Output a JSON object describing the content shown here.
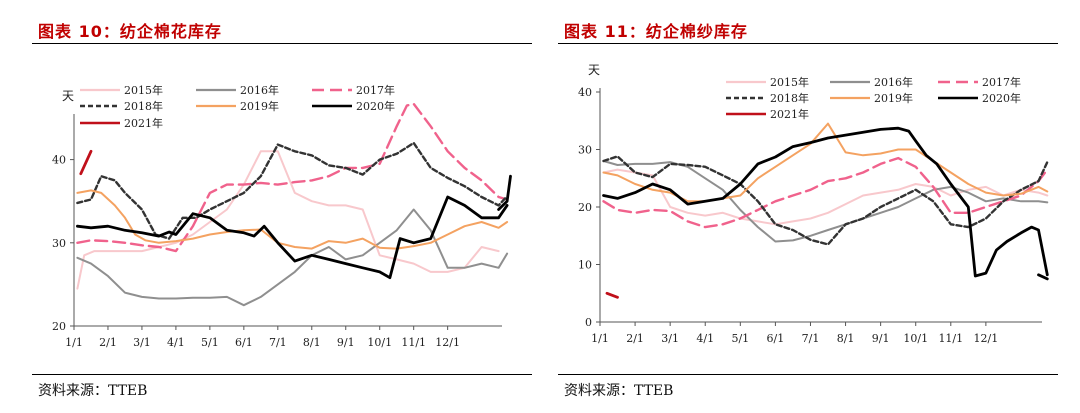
{
  "panels": [
    {
      "title": "图表 10：纺企棉花库存",
      "source": "资料来源：TTEB",
      "chart_data": {
        "type": "line",
        "ylabel": "天",
        "ylim": [
          20,
          45
        ],
        "xlim": [
          0,
          12.6
        ],
        "yticks": [
          20,
          30,
          40
        ],
        "xticks": [
          "1/1",
          "2/1",
          "3/1",
          "4/1",
          "5/1",
          "6/1",
          "7/1",
          "8/1",
          "9/1",
          "10/1",
          "11/1",
          "12/1"
        ],
        "legend_placement": "top-left",
        "series": [
          {
            "name": "2015年",
            "color": "#f8c8cc",
            "dash": "solid",
            "width": 2,
            "x": [
              0.1,
              0.3,
              0.6,
              1,
              1.5,
              2,
              2.5,
              3,
              3.5,
              4,
              4.5,
              5,
              5.5,
              6,
              6.5,
              7,
              7.5,
              8,
              8.5,
              9,
              9.5,
              10,
              10.5,
              11,
              11.5,
              12,
              12.5
            ],
            "y": [
              24.5,
              28.5,
              29,
              29,
              29,
              29,
              29.5,
              30,
              31,
              32.5,
              34,
              37,
              41,
              41,
              36,
              35,
              34.5,
              34.5,
              34,
              28.5,
              28,
              27.5,
              26.5,
              26.5,
              27,
              29.5,
              29
            ]
          },
          {
            "name": "2016年",
            "color": "#8f8f8f",
            "dash": "solid",
            "width": 2,
            "x": [
              0.1,
              0.5,
              1,
              1.5,
              2,
              2.5,
              3,
              3.5,
              4,
              4.5,
              5,
              5.5,
              6,
              6.5,
              7,
              7.5,
              8,
              8.5,
              9,
              9.5,
              10,
              10.5,
              11,
              11.5,
              12,
              12.5,
              12.75
            ],
            "y": [
              28.2,
              27.5,
              26,
              24,
              23.5,
              23.3,
              23.3,
              23.4,
              23.4,
              23.5,
              22.5,
              23.5,
              25,
              26.5,
              28.5,
              29.5,
              28,
              28.5,
              30,
              31.5,
              34,
              31.5,
              27,
              27,
              27.5,
              27,
              28.7
            ]
          },
          {
            "name": "2017年",
            "color": "#f0628c",
            "dash": "dashed",
            "width": 2.4,
            "x": [
              0.1,
              0.5,
              1,
              1.5,
              2,
              2.5,
              3,
              3.5,
              4,
              4.5,
              5,
              5.5,
              6,
              6.5,
              7,
              7.5,
              8,
              8.5,
              9,
              9.5,
              9.8,
              10,
              10.5,
              11,
              11.5,
              12,
              12.5,
              12.75
            ],
            "y": [
              30,
              30.3,
              30.2,
              30,
              29.7,
              29.5,
              29,
              32,
              36,
              37,
              37,
              37.2,
              37,
              37.3,
              37.5,
              38,
              39,
              39,
              39.5,
              44,
              46.5,
              46.7,
              44,
              41,
              39,
              37.5,
              35.5,
              35.2
            ]
          },
          {
            "name": "2018年",
            "color": "#333333",
            "dash": "dotted",
            "width": 2.4,
            "x": [
              0.1,
              0.5,
              0.8,
              1.2,
              1.5,
              2,
              2.4,
              2.8,
              3.2,
              3.6,
              4,
              4.5,
              5,
              5.5,
              6,
              6.5,
              7,
              7.5,
              8,
              8.5,
              9,
              9.5,
              10,
              10.5,
              11,
              11.5,
              12,
              12.5,
              12.75
            ],
            "y": [
              34.8,
              35.2,
              38,
              37.5,
              36,
              34,
              31,
              30.5,
              33,
              33,
              34,
              35,
              36,
              38,
              41.8,
              41,
              40.5,
              39.3,
              39,
              38.2,
              40,
              40.7,
              42,
              39,
              37.8,
              36.8,
              35.5,
              34.5,
              35.6
            ]
          },
          {
            "name": "2019年",
            "color": "#f4a261",
            "dash": "solid",
            "width": 2,
            "x": [
              0.1,
              0.5,
              0.8,
              1.2,
              1.5,
              1.8,
              2.1,
              2.5,
              3,
              3.5,
              4,
              4.5,
              5,
              5.5,
              6,
              6.5,
              7,
              7.5,
              8,
              8.5,
              9,
              9.5,
              10,
              10.5,
              11,
              11.5,
              12,
              12.5,
              12.75
            ],
            "y": [
              36,
              36.3,
              36,
              34.5,
              33,
              31,
              30.3,
              30,
              30.2,
              30.5,
              31,
              31.3,
              31.5,
              31.6,
              30,
              29.5,
              29.3,
              30.2,
              30,
              30.5,
              29.4,
              29.3,
              29.6,
              30,
              31,
              32,
              32.5,
              31.8,
              32.5
            ]
          },
          {
            "name": "2020年",
            "color": "#000000",
            "dash": "solid",
            "width": 2.8,
            "x": [
              0.1,
              0.5,
              1,
              1.5,
              2,
              2.5,
              2.8,
              3,
              3.5,
              4,
              4.5,
              5,
              5.3,
              5.6,
              6,
              6.5,
              7,
              7.5,
              8,
              8.5,
              9,
              9.3,
              9.6,
              10,
              10.5,
              11,
              11.5,
              12,
              12.5,
              12.75
            ],
            "y": [
              32,
              31.8,
              32,
              31.5,
              31.2,
              30.8,
              31.3,
              31,
              33.5,
              33,
              31.5,
              31.2,
              30.8,
              32,
              30,
              27.8,
              28.5,
              28,
              27.5,
              27,
              26.5,
              25.8,
              30.5,
              30,
              30.5,
              35.5,
              34.5,
              33,
              33,
              34.5
            ]
          },
          {
            "name": "2020年_tail",
            "color": "#000000",
            "dash": "solid",
            "width": 2.8,
            "x": [
              12.5,
              12.75,
              12.85
            ],
            "y": [
              34,
              35,
              38
            ]
          },
          {
            "name": "2021年",
            "color": "#c0101a",
            "dash": "solid",
            "width": 2.8,
            "x": [
              0.2,
              0.5
            ],
            "y": [
              38.3,
              41
            ]
          }
        ]
      },
      "legend": [
        {
          "label": "2015年",
          "color": "#f8c8cc",
          "dash": "solid"
        },
        {
          "label": "2016年",
          "color": "#8f8f8f",
          "dash": "solid"
        },
        {
          "label": "2017年",
          "color": "#f0628c",
          "dash": "dashed"
        },
        {
          "label": "2018年",
          "color": "#333333",
          "dash": "dotted"
        },
        {
          "label": "2019年",
          "color": "#f4a261",
          "dash": "solid"
        },
        {
          "label": "2020年",
          "color": "#000000",
          "dash": "solid"
        },
        {
          "label": "2021年",
          "color": "#c0101a",
          "dash": "solid"
        }
      ]
    },
    {
      "title": "图表 11：纺企棉纱库存",
      "source": "资料来源：TTEB",
      "chart_data": {
        "type": "line",
        "ylabel": "天",
        "ylim": [
          0,
          40
        ],
        "xlim": [
          0,
          12.6
        ],
        "yticks": [
          0,
          10,
          20,
          30,
          40
        ],
        "xticks": [
          "1/1",
          "2/1",
          "3/1",
          "4/1",
          "5/1",
          "6/1",
          "7/1",
          "8/1",
          "9/1",
          "10/1",
          "11/1",
          "12/1"
        ],
        "legend_placement": "top-right",
        "series": [
          {
            "name": "2015年",
            "color": "#f8c8cc",
            "dash": "solid",
            "width": 2,
            "x": [
              0.1,
              0.5,
              1,
              1.5,
              2,
              2.5,
              3,
              3.5,
              4,
              4.5,
              5,
              5.5,
              6,
              6.5,
              7,
              7.5,
              8,
              8.5,
              9,
              9.5,
              10,
              10.5,
              11,
              11.5,
              12,
              12.5,
              12.75
            ],
            "y": [
              26,
              26.5,
              26,
              25.5,
              20,
              19,
              18.5,
              19,
              18,
              17.5,
              17,
              17.5,
              18,
              19,
              20.5,
              22,
              22.5,
              23,
              24,
              23.5,
              22,
              23,
              23.5,
              22,
              23,
              22.5,
              22
            ]
          },
          {
            "name": "2016年",
            "color": "#8f8f8f",
            "dash": "solid",
            "width": 2,
            "x": [
              0.1,
              0.5,
              1,
              1.5,
              2,
              2.5,
              3,
              3.5,
              4,
              4.5,
              5,
              5.5,
              6,
              6.5,
              7,
              7.5,
              8,
              8.5,
              9,
              9.5,
              10,
              10.5,
              11,
              11.5,
              12,
              12.5,
              12.75
            ],
            "y": [
              28,
              27.3,
              27.5,
              27.5,
              27.8,
              27,
              25,
              23,
              19.5,
              16.5,
              14,
              14.2,
              15,
              16,
              17,
              18,
              19,
              20,
              21.5,
              23,
              23.5,
              22.5,
              21,
              21.5,
              21,
              21,
              20.8
            ]
          },
          {
            "name": "2017年",
            "color": "#f0628c",
            "dash": "dashed",
            "width": 2.4,
            "x": [
              0.1,
              0.5,
              1,
              1.5,
              2,
              2.5,
              3,
              3.5,
              4,
              4.5,
              5,
              5.5,
              6,
              6.5,
              7,
              7.5,
              8,
              8.5,
              9,
              9.5,
              10,
              10.5,
              11,
              11.5,
              12,
              12.5,
              12.75
            ],
            "y": [
              21,
              19.5,
              19,
              19.5,
              19.3,
              17.5,
              16.5,
              17,
              18,
              19.5,
              21,
              22,
              23,
              24.5,
              25,
              26,
              27.5,
              28.5,
              27,
              23.5,
              19,
              19,
              20,
              21,
              22,
              24.5,
              26.5
            ]
          },
          {
            "name": "2018年",
            "color": "#333333",
            "dash": "dotted",
            "width": 2.4,
            "x": [
              0.1,
              0.5,
              1,
              1.5,
              2,
              2.5,
              3,
              3.5,
              4,
              4.5,
              5,
              5.5,
              6,
              6.5,
              7,
              7.5,
              8,
              8.5,
              9,
              9.5,
              10,
              10.5,
              11,
              11.5,
              12,
              12.5,
              12.75
            ],
            "y": [
              28,
              28.8,
              26,
              25.2,
              27.5,
              27.3,
              27,
              25.5,
              24,
              21,
              17,
              16,
              14.3,
              13.5,
              17,
              18,
              20,
              21.5,
              23,
              21,
              17,
              16.5,
              18,
              21,
              23,
              24.5,
              27.8
            ]
          },
          {
            "name": "2019年",
            "color": "#f4a261",
            "dash": "solid",
            "width": 2,
            "x": [
              0.1,
              0.5,
              1,
              1.5,
              2,
              2.5,
              3,
              3.5,
              4,
              4.5,
              5,
              5.5,
              6,
              6.5,
              7,
              7.5,
              8,
              8.5,
              9,
              9.5,
              10,
              10.5,
              11,
              11.5,
              12,
              12.5,
              12.75
            ],
            "y": [
              26,
              25.5,
              24,
              23,
              22.5,
              21,
              21,
              21.5,
              22,
              25,
              27,
              29,
              31,
              34.5,
              29.5,
              29,
              29.3,
              30,
              30,
              28,
              26,
              24,
              22.5,
              22,
              22.3,
              23.5,
              22.7
            ]
          },
          {
            "name": "2020年",
            "color": "#000000",
            "dash": "solid",
            "width": 2.8,
            "x": [
              0.1,
              0.5,
              1,
              1.5,
              2,
              2.5,
              3,
              3.5,
              4,
              4.5,
              5,
              5.5,
              6,
              6.5,
              7,
              7.5,
              8,
              8.5,
              8.8,
              9,
              9.3,
              9.6,
              10,
              10.5,
              10.7,
              11,
              11.3,
              11.6,
              12,
              12.3,
              12.5,
              12.75
            ],
            "y": [
              22,
              21.5,
              22.5,
              24,
              23,
              20.5,
              21,
              21.5,
              24,
              27.5,
              28.7,
              30.5,
              31.2,
              32,
              32.5,
              33,
              33.5,
              33.7,
              33.2,
              31.5,
              29,
              27.5,
              24,
              20,
              8,
              8.5,
              12.5,
              14,
              15.5,
              16.5,
              16,
              8.2
            ]
          },
          {
            "name": "2020年_tail",
            "color": "#000000",
            "dash": "solid",
            "width": 2.8,
            "x": [
              12.5,
              12.75
            ],
            "y": [
              8.2,
              7.5
            ]
          },
          {
            "name": "2021年",
            "color": "#c0101a",
            "dash": "solid",
            "width": 2.8,
            "x": [
              0.2,
              0.5
            ],
            "y": [
              5,
              4.3
            ]
          }
        ]
      },
      "legend": [
        {
          "label": "2015年",
          "color": "#f8c8cc",
          "dash": "solid"
        },
        {
          "label": "2016年",
          "color": "#8f8f8f",
          "dash": "solid"
        },
        {
          "label": "2017年",
          "color": "#f0628c",
          "dash": "dashed"
        },
        {
          "label": "2018年",
          "color": "#333333",
          "dash": "dotted"
        },
        {
          "label": "2019年",
          "color": "#f4a261",
          "dash": "solid"
        },
        {
          "label": "2020年",
          "color": "#000000",
          "dash": "solid"
        },
        {
          "label": "2021年",
          "color": "#c0101a",
          "dash": "solid"
        }
      ]
    }
  ]
}
